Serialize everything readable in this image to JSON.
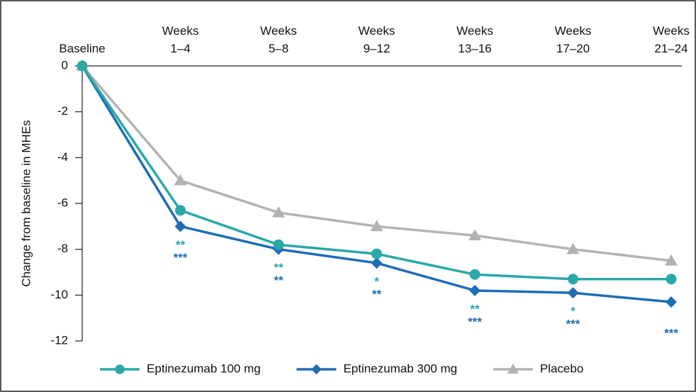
{
  "chart_data": {
    "type": "line",
    "y_label": "Change from baseline in MHEs",
    "categories": [
      "Baseline",
      "Weeks 1–4",
      "Weeks 5–8",
      "Weeks 9–12",
      "Weeks 13–16",
      "Weeks 17–20",
      "Weeks 21–24"
    ],
    "series": [
      {
        "name": "Eptinezumab 100 mg",
        "color": "#2aa8a8",
        "marker": "circle",
        "values": [
          0,
          -6.3,
          -7.8,
          -8.2,
          -9.1,
          -9.3,
          -9.3
        ],
        "significance": [
          null,
          "**",
          "**",
          "*",
          "**",
          "*",
          null
        ]
      },
      {
        "name": "Eptinezumab 300 mg",
        "color": "#1f6db5",
        "marker": "diamond",
        "values": [
          0,
          -7.0,
          -8.0,
          -8.6,
          -9.8,
          -9.9,
          -10.3
        ],
        "significance": [
          null,
          "***",
          "**",
          "**",
          "***",
          "***",
          "***"
        ]
      },
      {
        "name": "Placebo",
        "color": "#b3b3b3",
        "marker": "triangle",
        "values": [
          0,
          -5.0,
          -6.4,
          -7.0,
          -7.4,
          -8.0,
          -8.5
        ]
      }
    ],
    "ylim": [
      -12,
      0
    ],
    "yticks": [
      0,
      -2,
      -4,
      -6,
      -8,
      -10,
      -12
    ]
  }
}
